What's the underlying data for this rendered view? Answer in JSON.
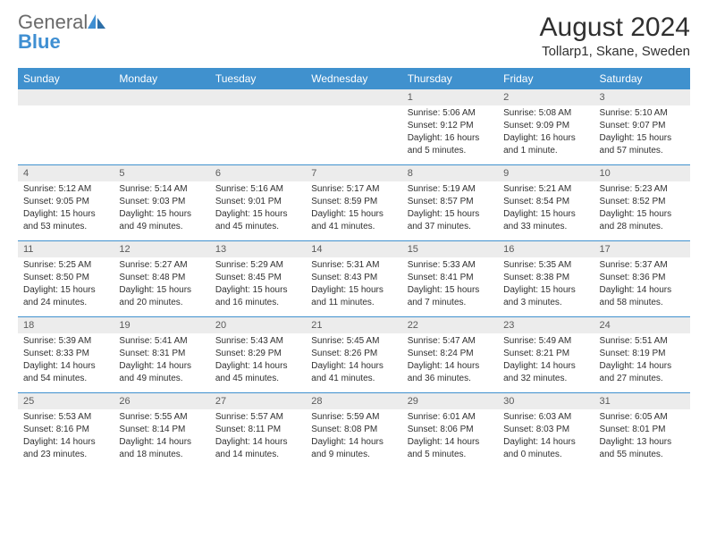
{
  "logo": {
    "text_gray": "General",
    "text_blue": "Blue"
  },
  "title": "August 2024",
  "location": "Tollarp1, Skane, Sweden",
  "weekdays": [
    "Sunday",
    "Monday",
    "Tuesday",
    "Wednesday",
    "Thursday",
    "Friday",
    "Saturday"
  ],
  "colors": {
    "header_bg": "#4091ce",
    "header_text": "#ffffff",
    "day_number_bg": "#ececec",
    "cell_border": "#4091ce",
    "text": "#303030",
    "logo_gray": "#6a6a6a",
    "logo_blue": "#3f8fd2",
    "background": "#ffffff"
  },
  "weeks": [
    [
      null,
      null,
      null,
      null,
      {
        "n": "1",
        "sunrise": "5:06 AM",
        "sunset": "9:12 PM",
        "daylight": "16 hours and 5 minutes."
      },
      {
        "n": "2",
        "sunrise": "5:08 AM",
        "sunset": "9:09 PM",
        "daylight": "16 hours and 1 minute."
      },
      {
        "n": "3",
        "sunrise": "5:10 AM",
        "sunset": "9:07 PM",
        "daylight": "15 hours and 57 minutes."
      }
    ],
    [
      {
        "n": "4",
        "sunrise": "5:12 AM",
        "sunset": "9:05 PM",
        "daylight": "15 hours and 53 minutes."
      },
      {
        "n": "5",
        "sunrise": "5:14 AM",
        "sunset": "9:03 PM",
        "daylight": "15 hours and 49 minutes."
      },
      {
        "n": "6",
        "sunrise": "5:16 AM",
        "sunset": "9:01 PM",
        "daylight": "15 hours and 45 minutes."
      },
      {
        "n": "7",
        "sunrise": "5:17 AM",
        "sunset": "8:59 PM",
        "daylight": "15 hours and 41 minutes."
      },
      {
        "n": "8",
        "sunrise": "5:19 AM",
        "sunset": "8:57 PM",
        "daylight": "15 hours and 37 minutes."
      },
      {
        "n": "9",
        "sunrise": "5:21 AM",
        "sunset": "8:54 PM",
        "daylight": "15 hours and 33 minutes."
      },
      {
        "n": "10",
        "sunrise": "5:23 AM",
        "sunset": "8:52 PM",
        "daylight": "15 hours and 28 minutes."
      }
    ],
    [
      {
        "n": "11",
        "sunrise": "5:25 AM",
        "sunset": "8:50 PM",
        "daylight": "15 hours and 24 minutes."
      },
      {
        "n": "12",
        "sunrise": "5:27 AM",
        "sunset": "8:48 PM",
        "daylight": "15 hours and 20 minutes."
      },
      {
        "n": "13",
        "sunrise": "5:29 AM",
        "sunset": "8:45 PM",
        "daylight": "15 hours and 16 minutes."
      },
      {
        "n": "14",
        "sunrise": "5:31 AM",
        "sunset": "8:43 PM",
        "daylight": "15 hours and 11 minutes."
      },
      {
        "n": "15",
        "sunrise": "5:33 AM",
        "sunset": "8:41 PM",
        "daylight": "15 hours and 7 minutes."
      },
      {
        "n": "16",
        "sunrise": "5:35 AM",
        "sunset": "8:38 PM",
        "daylight": "15 hours and 3 minutes."
      },
      {
        "n": "17",
        "sunrise": "5:37 AM",
        "sunset": "8:36 PM",
        "daylight": "14 hours and 58 minutes."
      }
    ],
    [
      {
        "n": "18",
        "sunrise": "5:39 AM",
        "sunset": "8:33 PM",
        "daylight": "14 hours and 54 minutes."
      },
      {
        "n": "19",
        "sunrise": "5:41 AM",
        "sunset": "8:31 PM",
        "daylight": "14 hours and 49 minutes."
      },
      {
        "n": "20",
        "sunrise": "5:43 AM",
        "sunset": "8:29 PM",
        "daylight": "14 hours and 45 minutes."
      },
      {
        "n": "21",
        "sunrise": "5:45 AM",
        "sunset": "8:26 PM",
        "daylight": "14 hours and 41 minutes."
      },
      {
        "n": "22",
        "sunrise": "5:47 AM",
        "sunset": "8:24 PM",
        "daylight": "14 hours and 36 minutes."
      },
      {
        "n": "23",
        "sunrise": "5:49 AM",
        "sunset": "8:21 PM",
        "daylight": "14 hours and 32 minutes."
      },
      {
        "n": "24",
        "sunrise": "5:51 AM",
        "sunset": "8:19 PM",
        "daylight": "14 hours and 27 minutes."
      }
    ],
    [
      {
        "n": "25",
        "sunrise": "5:53 AM",
        "sunset": "8:16 PM",
        "daylight": "14 hours and 23 minutes."
      },
      {
        "n": "26",
        "sunrise": "5:55 AM",
        "sunset": "8:14 PM",
        "daylight": "14 hours and 18 minutes."
      },
      {
        "n": "27",
        "sunrise": "5:57 AM",
        "sunset": "8:11 PM",
        "daylight": "14 hours and 14 minutes."
      },
      {
        "n": "28",
        "sunrise": "5:59 AM",
        "sunset": "8:08 PM",
        "daylight": "14 hours and 9 minutes."
      },
      {
        "n": "29",
        "sunrise": "6:01 AM",
        "sunset": "8:06 PM",
        "daylight": "14 hours and 5 minutes."
      },
      {
        "n": "30",
        "sunrise": "6:03 AM",
        "sunset": "8:03 PM",
        "daylight": "14 hours and 0 minutes."
      },
      {
        "n": "31",
        "sunrise": "6:05 AM",
        "sunset": "8:01 PM",
        "daylight": "13 hours and 55 minutes."
      }
    ]
  ]
}
